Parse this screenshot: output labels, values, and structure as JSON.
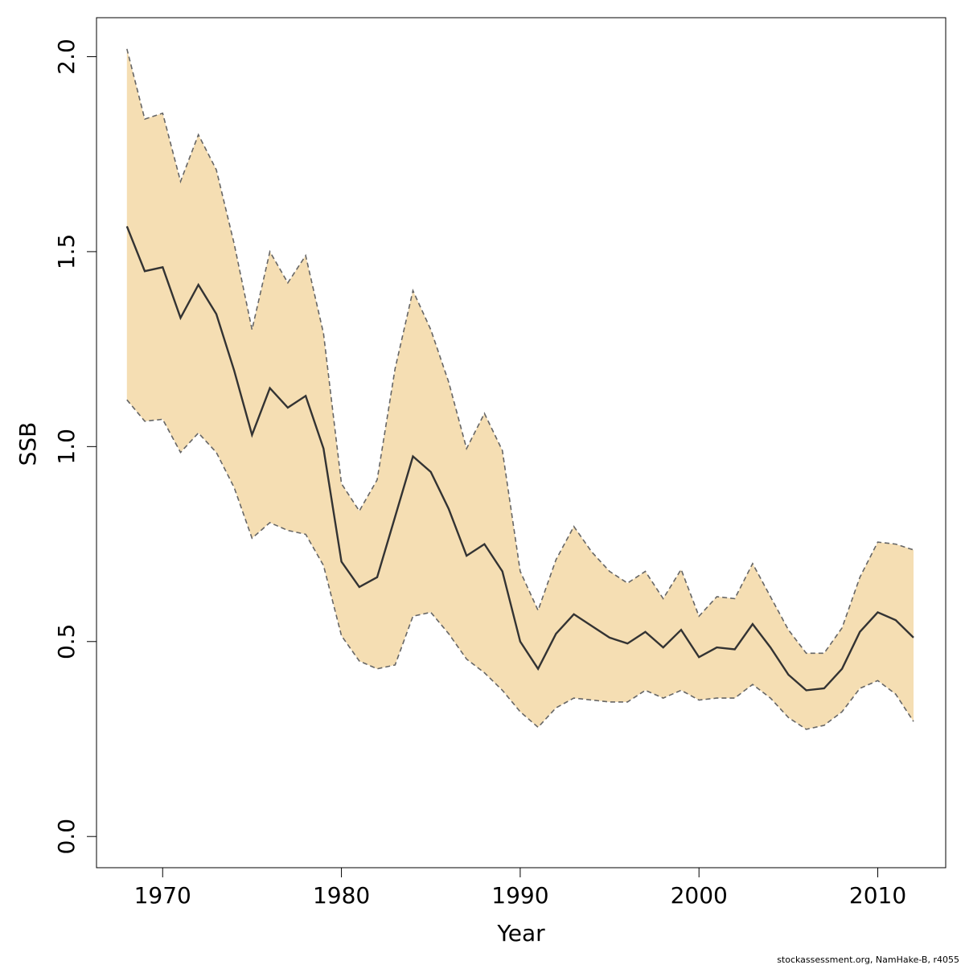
{
  "chart_data": {
    "type": "area",
    "xlabel": "Year",
    "ylabel": "SSB",
    "xlim": [
      1966.3,
      2013.8
    ],
    "ylim": [
      -0.08,
      2.1
    ],
    "x_ticks": [
      1970,
      1980,
      1990,
      2000,
      2010
    ],
    "y_ticks": [
      0.0,
      0.5,
      1.0,
      1.5,
      2.0
    ],
    "y_tick_labels": [
      "0.0",
      "0.5",
      "1.0",
      "1.5",
      "2.0"
    ],
    "grid": false,
    "colors": {
      "band": "#f5deb3",
      "line": "#333333",
      "bounds": "#666666"
    },
    "x": [
      1968,
      1969,
      1970,
      1971,
      1972,
      1973,
      1974,
      1975,
      1976,
      1977,
      1978,
      1979,
      1980,
      1981,
      1982,
      1983,
      1984,
      1985,
      1986,
      1987,
      1988,
      1989,
      1990,
      1991,
      1992,
      1993,
      1994,
      1995,
      1996,
      1997,
      1998,
      1999,
      2000,
      2001,
      2002,
      2003,
      2004,
      2005,
      2006,
      2007,
      2008,
      2009,
      2010,
      2011,
      2012
    ],
    "series": [
      {
        "role": "estimate",
        "values": [
          1.565,
          1.45,
          1.46,
          1.33,
          1.415,
          1.34,
          1.195,
          1.03,
          1.15,
          1.1,
          1.13,
          0.995,
          0.705,
          0.64,
          0.665,
          0.82,
          0.975,
          0.935,
          0.84,
          0.72,
          0.75,
          0.68,
          0.5,
          0.43,
          0.52,
          0.57,
          0.54,
          0.51,
          0.495,
          0.525,
          0.485,
          0.53,
          0.46,
          0.485,
          0.48,
          0.545,
          0.485,
          0.415,
          0.375,
          0.38,
          0.43,
          0.525,
          0.575,
          0.555,
          0.51
        ]
      },
      {
        "role": "upper",
        "values": [
          2.02,
          1.84,
          1.855,
          1.68,
          1.8,
          1.71,
          1.52,
          1.3,
          1.5,
          1.42,
          1.49,
          1.29,
          0.905,
          0.835,
          0.915,
          1.2,
          1.4,
          1.3,
          1.165,
          0.995,
          1.085,
          0.99,
          0.68,
          0.58,
          0.71,
          0.795,
          0.73,
          0.68,
          0.65,
          0.68,
          0.61,
          0.685,
          0.565,
          0.615,
          0.61,
          0.7,
          0.615,
          0.53,
          0.47,
          0.47,
          0.535,
          0.665,
          0.755,
          0.75,
          0.735
        ]
      },
      {
        "role": "lower",
        "values": [
          1.12,
          1.065,
          1.07,
          0.985,
          1.035,
          0.985,
          0.895,
          0.765,
          0.805,
          0.785,
          0.775,
          0.695,
          0.515,
          0.45,
          0.43,
          0.44,
          0.565,
          0.575,
          0.52,
          0.455,
          0.42,
          0.375,
          0.32,
          0.28,
          0.33,
          0.355,
          0.35,
          0.345,
          0.345,
          0.375,
          0.355,
          0.375,
          0.35,
          0.355,
          0.355,
          0.39,
          0.355,
          0.305,
          0.275,
          0.285,
          0.32,
          0.38,
          0.4,
          0.365,
          0.295
        ]
      }
    ]
  },
  "footer_text": "stockassessment.org, NamHake-B, r4055"
}
